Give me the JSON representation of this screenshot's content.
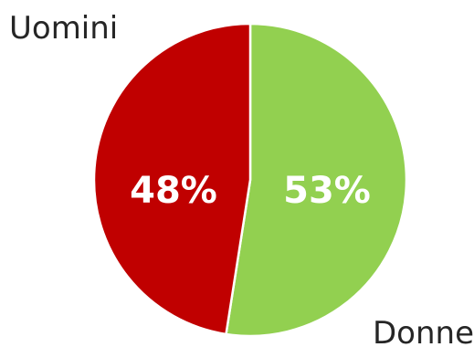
{
  "chart_data": {
    "type": "pie",
    "slices": [
      {
        "label": "Donne",
        "value": 53,
        "value_label": "53%",
        "color": "#92d050"
      },
      {
        "label": "Uomini",
        "value": 48,
        "value_label": "48%",
        "color": "#c00000"
      }
    ],
    "slice_border_color": "#ffffff",
    "legend": "none",
    "title": ""
  }
}
